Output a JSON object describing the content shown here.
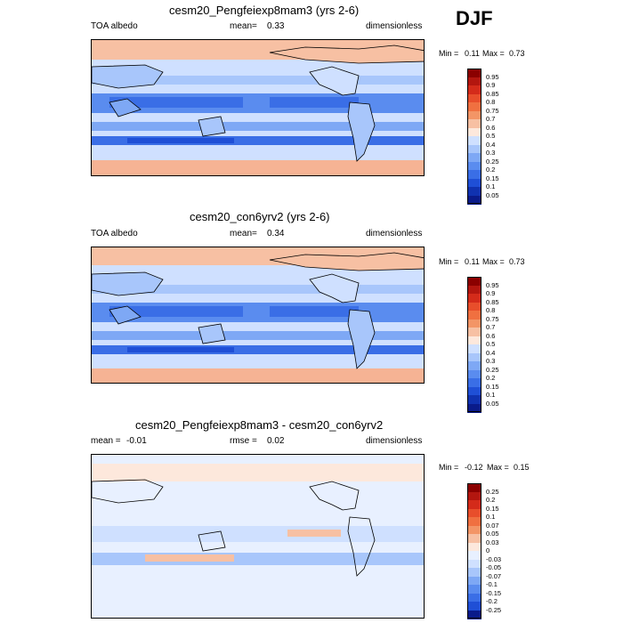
{
  "season": "DJF",
  "colors": {
    "pos": [
      "#f8e0d0",
      "#f6c5ac",
      "#f4a886",
      "#ef8560",
      "#e85f3e",
      "#d63a22",
      "#b51b12",
      "#8a0a0a"
    ],
    "neg": [
      "#cfe0ff",
      "#a8c6fb",
      "#7ea8f5",
      "#5a8cef",
      "#3a6ee6",
      "#2455d8",
      "#1a3cb8",
      "#102596"
    ]
  },
  "panels": [
    {
      "title": "cesm20_Pengfeiexp8mam3 (yrs 2-6)",
      "left_label": "TOA albedo",
      "mean_label": "mean=",
      "mean_value": "0.33",
      "units": "dimensionless",
      "min_label": "Min =",
      "min_value": "0.11",
      "max_label": "Max =",
      "max_value": "0.73",
      "levels": [
        "0.95",
        "0.9",
        "0.85",
        "0.8",
        "0.75",
        "0.7",
        "0.6",
        "0.5",
        "0.4",
        "0.3",
        "0.25",
        "0.2",
        "0.15",
        "0.1",
        "0.05"
      ],
      "colors": [
        "#8b0000",
        "#b3160f",
        "#d42b1a",
        "#e84e2b",
        "#f07040",
        "#f39566",
        "#f7c0a3",
        "#fde8dc",
        "#cfe0ff",
        "#a8c6fb",
        "#7ea8f5",
        "#5a8cef",
        "#3a6ee6",
        "#1f4fd6",
        "#1032b0",
        "#0a1b8a"
      ]
    },
    {
      "title": "cesm20_con6yrv2 (yrs 2-6)",
      "left_label": "TOA albedo",
      "mean_label": "mean=",
      "mean_value": "0.34",
      "units": "dimensionless",
      "min_label": "Min =",
      "min_value": "0.11",
      "max_label": "Max =",
      "max_value": "0.73",
      "levels": [
        "0.95",
        "0.9",
        "0.85",
        "0.8",
        "0.75",
        "0.7",
        "0.6",
        "0.5",
        "0.4",
        "0.3",
        "0.25",
        "0.2",
        "0.15",
        "0.1",
        "0.05"
      ],
      "colors": [
        "#8b0000",
        "#b3160f",
        "#d42b1a",
        "#e84e2b",
        "#f07040",
        "#f39566",
        "#f7c0a3",
        "#fde8dc",
        "#cfe0ff",
        "#a8c6fb",
        "#7ea8f5",
        "#5a8cef",
        "#3a6ee6",
        "#1f4fd6",
        "#1032b0",
        "#0a1b8a"
      ]
    },
    {
      "title": "cesm20_Pengfeiexp8mam3 - cesm20_con6yrv2",
      "left_label": "mean =",
      "left_value": "-0.01",
      "mid_label": "rmse =",
      "mid_value": "0.02",
      "units": "dimensionless",
      "min_label": "Min =",
      "min_value": "-0.12",
      "max_label": "Max =",
      "max_value": "0.15",
      "levels": [
        "0.25",
        "0.2",
        "0.15",
        "0.1",
        "0.07",
        "0.05",
        "0.03",
        "0",
        "-0.03",
        "-0.05",
        "-0.07",
        "-0.1",
        "-0.15",
        "-0.2",
        "-0.25"
      ],
      "colors": [
        "#8b0000",
        "#b3160f",
        "#d42b1a",
        "#e84e2b",
        "#f07040",
        "#f39566",
        "#f7c0a3",
        "#fde8dc",
        "#e8f0ff",
        "#cfe0ff",
        "#a8c6fb",
        "#7ea8f5",
        "#5a8cef",
        "#3a6ee6",
        "#1f4fd6",
        "#0a1b8a"
      ]
    }
  ],
  "chart_data": [
    {
      "type": "heatmap",
      "title": "cesm20_Pengfeiexp8mam3 (yrs 2-6)",
      "variable": "TOA albedo",
      "units": "dimensionless",
      "mean": 0.33,
      "min": 0.11,
      "max": 0.73,
      "contour_levels": [
        0.05,
        0.1,
        0.15,
        0.2,
        0.25,
        0.3,
        0.4,
        0.5,
        0.6,
        0.7,
        0.75,
        0.8,
        0.85,
        0.9,
        0.95
      ]
    },
    {
      "type": "heatmap",
      "title": "cesm20_con6yrv2 (yrs 2-6)",
      "variable": "TOA albedo",
      "units": "dimensionless",
      "mean": 0.34,
      "min": 0.11,
      "max": 0.73,
      "contour_levels": [
        0.05,
        0.1,
        0.15,
        0.2,
        0.25,
        0.3,
        0.4,
        0.5,
        0.6,
        0.7,
        0.75,
        0.8,
        0.85,
        0.9,
        0.95
      ]
    },
    {
      "type": "heatmap",
      "title": "cesm20_Pengfeiexp8mam3 - cesm20_con6yrv2",
      "units": "dimensionless",
      "mean": -0.01,
      "rmse": 0.02,
      "min": -0.12,
      "max": 0.15,
      "contour_levels": [
        -0.25,
        -0.2,
        -0.15,
        -0.1,
        -0.07,
        -0.05,
        -0.03,
        0,
        0.03,
        0.05,
        0.07,
        0.1,
        0.15,
        0.2,
        0.25
      ]
    }
  ]
}
